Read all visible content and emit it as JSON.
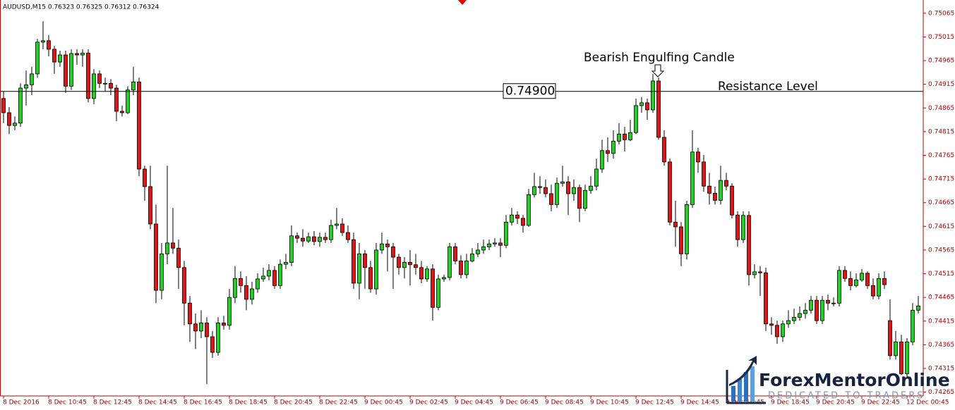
{
  "chart_data": {
    "type": "candlestick",
    "title": "AUDUSD,M15  0.76323 0.76325 0.76312 0.76324",
    "categories": [
      "8 Dec 2016",
      null,
      null,
      null,
      null,
      null,
      null,
      null,
      "8 Dec 10:45",
      null,
      null,
      null,
      null,
      null,
      null,
      null,
      "8 Dec 12:45",
      null,
      null,
      null,
      null,
      null,
      null,
      null,
      "8 Dec 14:45",
      null,
      null,
      null,
      null,
      null,
      null,
      null,
      "8 Dec 16:45",
      null,
      null,
      null,
      null,
      null,
      null,
      null,
      "8 Dec 18:45",
      null,
      null,
      null,
      null,
      null,
      null,
      null,
      "8 Dec 20:45",
      null,
      null,
      null,
      null,
      null,
      null,
      null,
      "8 Dec 22:45",
      null,
      null,
      null,
      null,
      null,
      null,
      null,
      "9 Dec 00:45",
      null,
      null,
      null,
      null,
      null,
      null,
      null,
      "9 Dec 02:45",
      null,
      null,
      null,
      null,
      null,
      null,
      null,
      "9 Dec 04:45",
      null,
      null,
      null,
      null,
      null,
      null,
      null,
      "9 Dec 06:45",
      null,
      null,
      null,
      null,
      null,
      null,
      null,
      "9 Dec 08:45",
      null,
      null,
      null,
      null,
      null,
      null,
      null,
      "9 Dec 10:45",
      null,
      null,
      null,
      null,
      null,
      null,
      null,
      "9 Dec 12:45",
      null,
      null,
      null,
      null,
      null,
      null,
      null,
      "9 Dec 14:45",
      null,
      null,
      null,
      null,
      null,
      null,
      null,
      "9 Dec 16:45",
      null,
      null,
      null,
      null,
      null,
      null,
      null,
      "9 Dec 18:45",
      null,
      null,
      null,
      null,
      null,
      null,
      null,
      "9 Dec 20:45",
      null,
      null,
      null,
      null,
      null,
      null,
      null,
      "9 Dec 22:45",
      null,
      null,
      null,
      null,
      null,
      null,
      null,
      "12 Dec 00:45",
      null,
      null
    ],
    "open": [
      0.74885,
      0.74855,
      0.74828,
      0.74833,
      0.74907,
      0.74914,
      0.74937,
      0.75004,
      0.75007,
      0.74989,
      0.74962,
      0.74977,
      0.74911,
      0.7498,
      0.74977,
      0.74981,
      0.74885,
      0.74937,
      0.74917,
      0.74917,
      0.74907,
      0.74858,
      0.74855,
      0.74903,
      0.7492,
      0.74736,
      0.74699,
      0.7462,
      0.7448,
      0.74557,
      0.7458,
      0.74569,
      0.74528,
      0.74453,
      0.74409,
      0.74394,
      0.74411,
      0.74382,
      0.74349,
      0.74411,
      0.74406,
      0.74465,
      0.74505,
      0.7449,
      0.74461,
      0.74483,
      0.74504,
      0.7451,
      0.74522,
      0.7449,
      0.74535,
      0.74539,
      0.74595,
      0.7459,
      0.74584,
      0.74593,
      0.74583,
      0.74592,
      0.74587,
      0.74617,
      0.7462,
      0.74602,
      0.74587,
      0.74495,
      0.74557,
      0.74528,
      0.74483,
      0.74565,
      0.74578,
      0.74572,
      0.7455,
      0.74528,
      0.74539,
      0.74534,
      0.74528,
      0.74504,
      0.74525,
      0.74444,
      0.74504,
      0.74507,
      0.74572,
      0.74542,
      0.74513,
      0.74542,
      0.74557,
      0.74565,
      0.74572,
      0.74578,
      0.7458,
      0.74575,
      0.74624,
      0.74639,
      0.74632,
      0.74617,
      0.74682,
      0.74699,
      0.74697,
      0.74684,
      0.74661,
      0.74706,
      0.74709,
      0.74684,
      0.74697,
      0.74653,
      0.74691,
      0.747,
      0.74736,
      0.74775,
      0.74769,
      0.74795,
      0.7481,
      0.74798,
      0.74813,
      0.7487,
      0.74876,
      0.74861,
      0.74922,
      0.74803,
      0.74751,
      0.74624,
      0.74614,
      0.74557,
      0.74661,
      0.74772,
      0.74751,
      0.747,
      0.74685,
      0.7467,
      0.74712,
      0.747,
      0.74639,
      0.74587,
      0.74638,
      0.74513,
      0.74519,
      0.74517,
      0.74409,
      0.74406,
      0.74382,
      0.74409,
      0.74416,
      0.74423,
      0.74431,
      0.74438,
      0.74459,
      0.74416,
      0.74459,
      0.74453,
      0.74453,
      0.74522,
      0.74505,
      0.7449,
      0.74502,
      0.74516,
      0.7449,
      0.74468,
      0.74505,
      0.74416,
      0.74342,
      0.74371,
      0.74304,
      0.74371,
      0.74438
    ],
    "high": [
      0.749,
      0.74867,
      0.74847,
      0.74917,
      0.74944,
      0.74952,
      0.75011,
      0.75048,
      0.75019,
      0.74996,
      0.74986,
      0.74986,
      0.74989,
      0.74989,
      0.74989,
      0.74989,
      0.74947,
      0.74944,
      0.74929,
      0.74926,
      0.74914,
      0.7487,
      0.74911,
      0.74952,
      0.74929,
      0.74743,
      0.74743,
      0.74661,
      0.7458,
      0.74743,
      0.74654,
      0.74587,
      0.74542,
      0.74468,
      0.74431,
      0.74438,
      0.74423,
      0.74394,
      0.74423,
      0.74426,
      0.74483,
      0.74531,
      0.7452,
      0.7451,
      0.74498,
      0.74516,
      0.74528,
      0.74535,
      0.74531,
      0.74545,
      0.74557,
      0.74617,
      0.74602,
      0.74609,
      0.74602,
      0.74605,
      0.74602,
      0.74602,
      0.74629,
      0.74654,
      0.74632,
      0.74617,
      0.74602,
      0.7458,
      0.74565,
      0.74542,
      0.7458,
      0.74602,
      0.74587,
      0.7458,
      0.74557,
      0.7455,
      0.74565,
      0.74557,
      0.74542,
      0.74531,
      0.74535,
      0.74513,
      0.74513,
      0.7458,
      0.7458,
      0.74554,
      0.74557,
      0.74569,
      0.7458,
      0.74587,
      0.74587,
      0.7459,
      0.7459,
      0.74639,
      0.74654,
      0.74647,
      0.74639,
      0.74694,
      0.74728,
      0.74721,
      0.74714,
      0.74703,
      0.74718,
      0.74743,
      0.74721,
      0.74714,
      0.74703,
      0.74703,
      0.74721,
      0.74758,
      0.74798,
      0.74803,
      0.74818,
      0.74833,
      0.74825,
      0.7484,
      0.74885,
      0.74888,
      0.74885,
      0.74937,
      0.74929,
      0.74818,
      0.74758,
      0.74669,
      0.74624,
      0.74669,
      0.74818,
      0.74781,
      0.74766,
      0.74728,
      0.74699,
      0.74743,
      0.74728,
      0.74706,
      0.74647,
      0.74647,
      0.74647,
      0.74535,
      0.74531,
      0.74528,
      0.74423,
      0.74416,
      0.74416,
      0.74438,
      0.74441,
      0.74446,
      0.74453,
      0.74468,
      0.74468,
      0.74468,
      0.74471,
      0.74465,
      0.74531,
      0.74531,
      0.7452,
      0.74516,
      0.74525,
      0.7452,
      0.74505,
      0.74516,
      0.7452,
      0.74461,
      0.74394,
      0.74386,
      0.74379,
      0.74453,
      0.74468
    ],
    "low": [
      0.74833,
      0.7481,
      0.74818,
      0.74825,
      0.7487,
      0.74892,
      0.74929,
      0.74989,
      0.74974,
      0.74937,
      0.74952,
      0.74897,
      0.74903,
      0.74956,
      0.74952,
      0.74877,
      0.74873,
      0.74907,
      0.749,
      0.74892,
      0.74837,
      0.74847,
      0.74852,
      0.74892,
      0.74721,
      0.74669,
      0.74609,
      0.74453,
      0.74461,
      0.74535,
      0.74557,
      0.74483,
      0.74406,
      0.74371,
      0.74356,
      0.74379,
      0.74282,
      0.74337,
      0.74342,
      0.74397,
      0.74397,
      0.74453,
      0.74475,
      0.74438,
      0.7445,
      0.74475,
      0.74498,
      0.74501,
      0.74483,
      0.74483,
      0.74525,
      0.74531,
      0.7458,
      0.74572,
      0.7458,
      0.74575,
      0.74572,
      0.7458,
      0.7458,
      0.74609,
      0.74595,
      0.7458,
      0.74483,
      0.74461,
      0.74483,
      0.74475,
      0.74471,
      0.74557,
      0.7452,
      0.74483,
      0.74513,
      0.74505,
      0.7449,
      0.74513,
      0.74495,
      0.74498,
      0.74416,
      0.74438,
      0.74498,
      0.74501,
      0.74535,
      0.74505,
      0.74505,
      0.74539,
      0.7455,
      0.74557,
      0.74565,
      0.74572,
      0.7455,
      0.74569,
      0.74617,
      0.7462,
      0.74602,
      0.74614,
      0.74676,
      0.74684,
      0.74676,
      0.74647,
      0.74654,
      0.74699,
      0.74639,
      0.74669,
      0.74624,
      0.74647,
      0.74684,
      0.74691,
      0.74728,
      0.74751,
      0.74758,
      0.74788,
      0.74773,
      0.74795,
      0.7481,
      0.74855,
      0.7484,
      0.74855,
      0.74798,
      0.74743,
      0.74617,
      0.74572,
      0.74531,
      0.74545,
      0.74654,
      0.74728,
      0.74688,
      0.74661,
      0.74661,
      0.74661,
      0.74691,
      0.74632,
      0.74572,
      0.7458,
      0.7449,
      0.74505,
      0.74468,
      0.74394,
      0.74386,
      0.74367,
      0.74371,
      0.74401,
      0.74409,
      0.74416,
      0.7442,
      0.74431,
      0.74409,
      0.74409,
      0.74438,
      0.74446,
      0.74446,
      0.74498,
      0.7448,
      0.74486,
      0.74498,
      0.74483,
      0.74461,
      0.74461,
      0.74483,
      0.74334,
      0.74334,
      0.74301,
      0.74297,
      0.74364,
      0.74431
    ],
    "close": [
      0.74855,
      0.74828,
      0.74833,
      0.74907,
      0.74914,
      0.74937,
      0.75004,
      0.75007,
      0.74989,
      0.74962,
      0.74977,
      0.74911,
      0.7498,
      0.74977,
      0.74981,
      0.74885,
      0.74937,
      0.74917,
      0.74917,
      0.74907,
      0.74858,
      0.74855,
      0.74903,
      0.7492,
      0.74736,
      0.74699,
      0.7462,
      0.7448,
      0.74557,
      0.7458,
      0.74569,
      0.74528,
      0.74453,
      0.74409,
      0.74394,
      0.74411,
      0.74382,
      0.74349,
      0.74411,
      0.74406,
      0.74465,
      0.74505,
      0.7449,
      0.74461,
      0.74483,
      0.74504,
      0.7451,
      0.74522,
      0.7449,
      0.74535,
      0.74539,
      0.74595,
      0.7459,
      0.74584,
      0.74593,
      0.74583,
      0.74592,
      0.74587,
      0.74617,
      0.7462,
      0.74602,
      0.74587,
      0.74495,
      0.74557,
      0.74528,
      0.74483,
      0.74565,
      0.74578,
      0.74572,
      0.7455,
      0.74528,
      0.74539,
      0.74534,
      0.74528,
      0.74504,
      0.74525,
      0.74444,
      0.74504,
      0.74507,
      0.74572,
      0.74542,
      0.74513,
      0.74542,
      0.74557,
      0.74565,
      0.74572,
      0.74578,
      0.7458,
      0.74575,
      0.74624,
      0.74639,
      0.74632,
      0.74617,
      0.74682,
      0.74699,
      0.74697,
      0.74684,
      0.74661,
      0.74706,
      0.74709,
      0.74684,
      0.74697,
      0.74653,
      0.74691,
      0.747,
      0.74736,
      0.74775,
      0.74769,
      0.74795,
      0.7481,
      0.74798,
      0.74813,
      0.7487,
      0.74876,
      0.74861,
      0.74922,
      0.74803,
      0.74751,
      0.74624,
      0.74614,
      0.74557,
      0.74661,
      0.74772,
      0.74751,
      0.747,
      0.74685,
      0.7467,
      0.74712,
      0.747,
      0.74639,
      0.74587,
      0.74638,
      0.74513,
      0.74519,
      0.74517,
      0.74409,
      0.74406,
      0.74382,
      0.74409,
      0.74416,
      0.74423,
      0.74431,
      0.74438,
      0.74459,
      0.74416,
      0.74459,
      0.74453,
      0.74453,
      0.74522,
      0.74505,
      0.7449,
      0.74502,
      0.74516,
      0.7449,
      0.74468,
      0.74505,
      0.74492,
      0.74342,
      0.74371,
      0.74304,
      0.74371,
      0.74438,
      0.74447
    ],
    "up_color": "#1ed21e",
    "down_color": "#e01414",
    "ylim": [
      0.74257,
      0.75093
    ],
    "yticks": [
      0.75065,
      0.75015,
      0.74965,
      0.74915,
      0.74865,
      0.74815,
      0.74765,
      0.74715,
      0.74665,
      0.74615,
      0.74565,
      0.74515,
      0.74465,
      0.74415,
      0.74365,
      0.74315,
      0.74265
    ],
    "hline": {
      "value": 0.749,
      "label": "0.74900",
      "text": "Resistance Level"
    },
    "annotation": "Bearish Engulfing Candle"
  },
  "logo": {
    "name": "ForexMentorOnline",
    "tagline": "DEDICATED TO TRADERS"
  }
}
